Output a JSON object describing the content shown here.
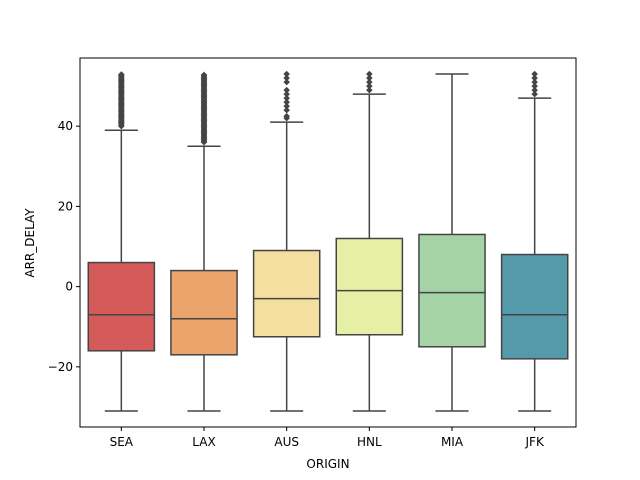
{
  "chart_data": {
    "type": "boxplot",
    "title": "",
    "xlabel": "ORIGIN",
    "ylabel": "ARR_DELAY",
    "categories": [
      "SEA",
      "LAX",
      "AUS",
      "HNL",
      "MIA",
      "JFK"
    ],
    "ylim": [
      -35,
      57
    ],
    "yticks": [
      -20,
      0,
      20,
      40
    ],
    "grid": false,
    "legend": "none",
    "boxes": [
      {
        "category": "SEA",
        "whisker_low": -31,
        "q1": -16,
        "median": -7,
        "q3": 6,
        "whisker_high": 39,
        "outliers_from": 40,
        "outliers_to": 53,
        "color": "#d45b5a"
      },
      {
        "category": "LAX",
        "whisker_low": -31,
        "q1": -17,
        "median": -8,
        "q3": 4,
        "whisker_high": 35,
        "outliers_from": 36,
        "outliers_to": 53,
        "color": "#eba46b"
      },
      {
        "category": "AUS",
        "whisker_low": -31,
        "q1": -12.5,
        "median": -3,
        "q3": 9,
        "whisker_high": 41,
        "outliers": [
          42,
          42.5,
          44,
          45,
          46,
          47,
          48,
          49,
          51,
          52,
          53
        ],
        "color": "#f4dfa0"
      },
      {
        "category": "HNL",
        "whisker_low": -31,
        "q1": -12,
        "median": -1,
        "q3": 12,
        "whisker_high": 48,
        "outliers": [
          49,
          50,
          51,
          52,
          53
        ],
        "color": "#e6efa6"
      },
      {
        "category": "MIA",
        "whisker_low": -31,
        "q1": -15,
        "median": -1.5,
        "q3": 13,
        "whisker_high": 53,
        "outliers": [],
        "color": "#a6d3a6"
      },
      {
        "category": "JFK",
        "whisker_low": -31,
        "q1": -18,
        "median": -7,
        "q3": 8,
        "whisker_high": 47,
        "outliers": [
          48,
          49,
          50,
          51,
          52,
          53
        ],
        "color": "#559aaa"
      }
    ]
  }
}
